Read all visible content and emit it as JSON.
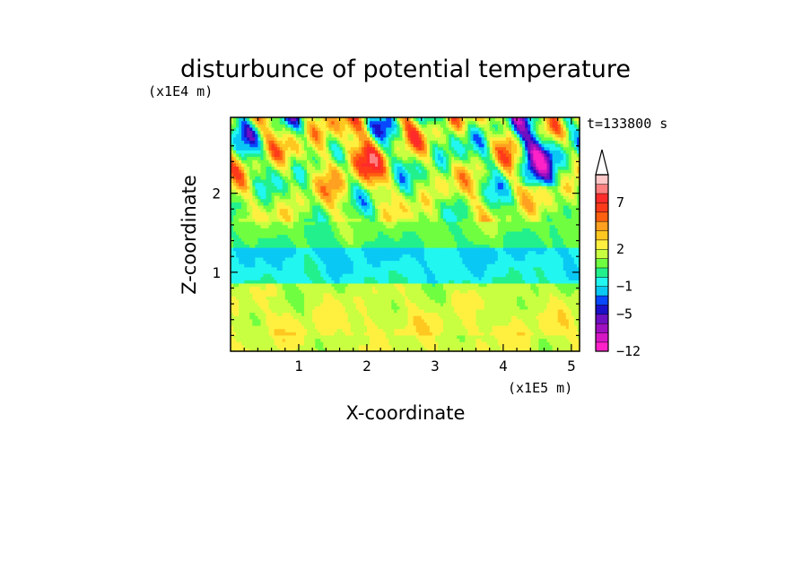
{
  "chart_data": {
    "type": "heatmap",
    "title": "disturbunce of potential temperature",
    "time_label": "t=133800 s",
    "xlabel": "X-coordinate",
    "ylabel": "Z-coordinate",
    "x_unit": "(x1E5 m)",
    "y_unit": "(x1E4 m)",
    "xlim": [
      0,
      5.12
    ],
    "ylim": [
      0,
      2.96
    ],
    "x_ticks": [
      1,
      2,
      3,
      4,
      5
    ],
    "y_ticks": [
      1,
      2
    ],
    "colorbar": {
      "labels": [
        {
          "text": "7",
          "value": 7
        },
        {
          "text": "2",
          "value": 2
        },
        {
          "text": "−1",
          "value": -1
        },
        {
          "text": "−5",
          "value": -5
        },
        {
          "text": "−12",
          "value": -12
        }
      ],
      "colors_bottom_to_top": [
        "#ff22c8",
        "#d617c4",
        "#a010c0",
        "#6e10c2",
        "#1b10c9",
        "#0848ff",
        "#0ac8f4",
        "#22f6f0",
        "#22f08c",
        "#70ff40",
        "#c8ff40",
        "#fff040",
        "#ffc820",
        "#ffa020",
        "#ff6010",
        "#ff3a1a",
        "#ff2b2b",
        "#ff8080",
        "#ffc8c8"
      ],
      "extend": "max"
    }
  }
}
